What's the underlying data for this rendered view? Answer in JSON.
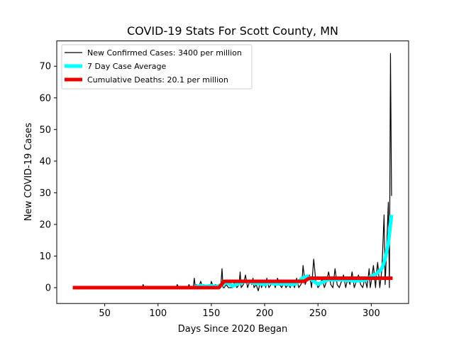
{
  "chart_data": {
    "type": "line",
    "title": "COVID-19 Stats For Scott County, MN",
    "xlabel": "Days Since 2020 Began",
    "ylabel": "New COVID-19 Cases",
    "xlim": [
      5,
      335
    ],
    "ylim": [
      -5,
      78
    ],
    "xticks": [
      50,
      100,
      150,
      200,
      250,
      300
    ],
    "yticks": [
      0,
      10,
      20,
      30,
      40,
      50,
      60,
      70
    ],
    "grid": false,
    "legend_position": "top-left",
    "series": [
      {
        "name": "New Confirmed Cases: 3400 per million",
        "color": "#000000",
        "x": [
          20,
          40,
          60,
          85,
          86,
          87,
          100,
          117,
          118,
          119,
          125,
          128,
          129,
          130,
          133,
          134,
          135,
          136,
          137,
          138,
          140,
          142,
          143,
          144,
          145,
          146,
          148,
          149,
          150,
          152,
          154,
          156,
          158,
          159,
          160,
          161,
          162,
          164,
          166,
          168,
          170,
          172,
          174,
          176,
          177,
          178,
          180,
          182,
          184,
          186,
          188,
          189,
          190,
          192,
          194,
          196,
          197,
          198,
          200,
          201,
          202,
          204,
          206,
          208,
          210,
          212,
          214,
          216,
          218,
          220,
          222,
          224,
          226,
          228,
          230,
          232,
          234,
          235,
          236,
          238,
          240,
          242,
          244,
          246,
          248,
          250,
          252,
          254,
          256,
          258,
          260,
          262,
          264,
          265,
          266,
          268,
          270,
          272,
          274,
          276,
          278,
          280,
          282,
          284,
          286,
          288,
          290,
          292,
          294,
          296,
          298,
          299,
          300,
          302,
          304,
          305,
          306,
          308,
          310,
          312,
          313,
          314,
          316,
          317,
          318,
          319
        ],
        "values": [
          0,
          0,
          0,
          0,
          1,
          0,
          0,
          0,
          1,
          0,
          0,
          0,
          1,
          0,
          0,
          3,
          0,
          1,
          0,
          0,
          2,
          0,
          1,
          0,
          0,
          0,
          1,
          0,
          2,
          0,
          1,
          0,
          0,
          1,
          6,
          0,
          0,
          1,
          0,
          0,
          0,
          2,
          0,
          1,
          5,
          0,
          1,
          4,
          0,
          2,
          1,
          3,
          0,
          1,
          -1,
          2,
          0,
          1,
          2,
          0,
          3,
          0,
          1,
          2,
          0,
          3,
          1,
          0,
          2,
          0,
          1,
          0,
          2,
          0,
          3,
          0,
          1,
          2,
          7,
          1,
          3,
          4,
          0,
          9,
          2,
          0,
          1,
          3,
          0,
          2,
          5,
          1,
          0,
          3,
          6,
          1,
          0,
          2,
          4,
          0,
          3,
          1,
          5,
          0,
          2,
          4,
          1,
          0,
          3,
          0,
          6,
          0,
          2,
          7,
          0,
          5,
          8,
          0,
          6,
          23,
          1,
          9,
          27,
          0,
          74,
          29
        ]
      },
      {
        "name": "7 Day Case Average",
        "color": "#00ffff",
        "x": [
          135,
          140,
          145,
          150,
          155,
          160,
          165,
          170,
          175,
          180,
          185,
          190,
          195,
          200,
          205,
          210,
          215,
          220,
          225,
          230,
          235,
          240,
          245,
          250,
          255,
          260,
          265,
          270,
          275,
          280,
          285,
          290,
          295,
          300,
          305,
          310,
          313,
          316,
          319
        ],
        "values": [
          0.3,
          0.6,
          0.4,
          0.6,
          0.3,
          1.0,
          1.6,
          0.5,
          1.2,
          1.8,
          2.0,
          1.4,
          1.3,
          1.0,
          1.6,
          1.1,
          1.3,
          1.2,
          0.9,
          1.3,
          3.0,
          3.6,
          2.3,
          1.1,
          1.8,
          2.6,
          2.4,
          2.6,
          2.4,
          2.3,
          2.1,
          2.3,
          2.4,
          3.6,
          4.4,
          6.0,
          9.0,
          14.0,
          23.0
        ]
      },
      {
        "name": "Cumulative Deaths: 20.1 per million",
        "color": "#ee0000",
        "x": [
          20,
          157,
          162,
          190,
          237,
          242,
          320
        ],
        "values": [
          0,
          0,
          2,
          2,
          2,
          3,
          3
        ]
      }
    ]
  }
}
